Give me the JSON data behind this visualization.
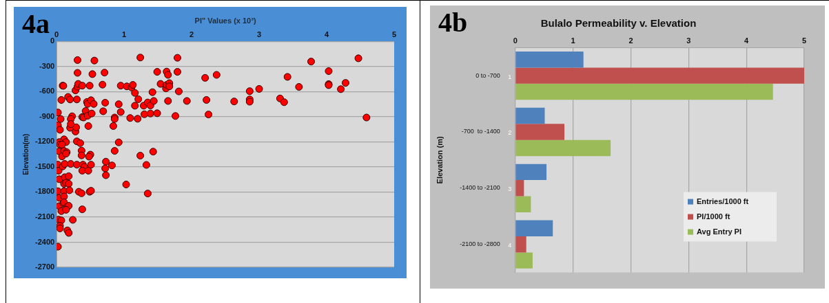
{
  "chart_data": [
    {
      "type": "scatter",
      "xlabel": "PI\" Values (x 10³)",
      "ylabel": "Elevation(m)",
      "annotations": [
        "4a"
      ],
      "xlim": [
        0,
        5
      ],
      "xticks": [
        0,
        1,
        2,
        3,
        4,
        5
      ],
      "ylim": [
        -2700,
        0
      ],
      "yticks": [
        -2700,
        -2400,
        -2100,
        -1800,
        -1500,
        -1200,
        -900,
        -600,
        -300,
        0
      ],
      "grid": "y",
      "marker": "circle",
      "series": [
        {
          "color": "#ff0000",
          "x": [
            0.31,
            0.56,
            0.31,
            0.53,
            0.71,
            0.09,
            0.1,
            0.28,
            0.31,
            0.32,
            0.38,
            0.49,
            0.68,
            0.07,
            0.17,
            0.2,
            0.3,
            0.45,
            0.46,
            0.51,
            0.55,
            0.72,
            0.69,
            0.02,
            0.06,
            0.23,
            0.21,
            0.43,
            0.38,
            0.4,
            0.46,
            0.52,
            0.47,
            0.2,
            0.28,
            0.29,
            0.02,
            0.05,
            0.21,
            0.86,
            0.86,
            0.84,
            0.92,
            0.95,
            0.95,
            1.04,
            1.11,
            1.13,
            1.16,
            1.21,
            1.16,
            1.09,
            1.2,
            1.24,
            1.29,
            1.35,
            1.39,
            1.44,
            1.3,
            1.39,
            1.49,
            1.42,
            1.49,
            1.54,
            1.63,
            1.65,
            1.62,
            1.63,
            1.67,
            1.67,
            1.65,
            1.79,
            1.79,
            1.81,
            1.76,
            1.93,
            2.2,
            2.22,
            2.25,
            2.37,
            2.63,
            2.86,
            2.86,
            2.86,
            3.0,
            3.31,
            3.37,
            3.42,
            3.59,
            3.77,
            4.03,
            4.03,
            4.03,
            4.21,
            4.28,
            4.47,
            4.59,
            0.11,
            0.04,
            0.05,
            0.14,
            0.08,
            0.3,
            0.35,
            0.92,
            0.04,
            0.11,
            0.15,
            0.08,
            0.14,
            0.37,
            0.37,
            0.5,
            0.48,
            0.86,
            1.24,
            1.43,
            0.02,
            0.03,
            0.09,
            0.12,
            0.21,
            0.3,
            0.39,
            0.41,
            0.38,
            0.47,
            0.51,
            0.73,
            0.72,
            0.73,
            0.82,
            1.33,
            1.03,
            1.35,
            0.04,
            0.12,
            0.18,
            0.11,
            0.14,
            0.18,
            0.02,
            0.11,
            0.19,
            0.04,
            0.11,
            0.33,
            0.37,
            0.49,
            0.51,
            0.04,
            0.1,
            0.11,
            0.16,
            0.18,
            0.07,
            0.14,
            0.38,
            0.03,
            0.07,
            0.24,
            0.05,
            0.05,
            0.16,
            0.18,
            0.02
          ],
          "values": [
            -222,
            -228,
            -375,
            -390,
            -372,
            -528,
            -530,
            -585,
            -540,
            -507,
            -528,
            -528,
            -516,
            -699,
            -663,
            -693,
            -693,
            -723,
            -747,
            -702,
            -747,
            -732,
            -834,
            -849,
            -927,
            -894,
            -927,
            -831,
            -903,
            -909,
            -888,
            -861,
            -1011,
            -1032,
            -1077,
            -1026,
            -1002,
            -1056,
            -987,
            -909,
            -927,
            -1011,
            -750,
            -843,
            -528,
            -537,
            -549,
            -519,
            -615,
            -690,
            -768,
            -915,
            -924,
            -192,
            -768,
            -729,
            -765,
            -711,
            -870,
            -861,
            -858,
            -606,
            -363,
            -507,
            -360,
            -399,
            -561,
            -519,
            -498,
            -537,
            -711,
            -195,
            -363,
            -597,
            -891,
            -711,
            -435,
            -699,
            -873,
            -399,
            -717,
            -594,
            -693,
            -720,
            -567,
            -681,
            -726,
            -423,
            -543,
            -240,
            -354,
            -510,
            -522,
            -570,
            -495,
            -201,
            -909,
            -1170,
            -1203,
            -1233,
            -1203,
            -1233,
            -1194,
            -1215,
            -1206,
            -1314,
            -1308,
            -1323,
            -1374,
            -1341,
            -1305,
            -1362,
            -1353,
            -1377,
            -1308,
            -1365,
            -1317,
            -1473,
            -1545,
            -1494,
            -1464,
            -1464,
            -1473,
            -1473,
            -1500,
            -1545,
            -1545,
            -1473,
            -1437,
            -1518,
            -1599,
            -1482,
            -1476,
            -1710,
            -1818,
            -1647,
            -1623,
            -1611,
            -1701,
            -1689,
            -1701,
            -1791,
            -1791,
            -1779,
            -1869,
            -1854,
            -1797,
            -1815,
            -1797,
            -1785,
            -1968,
            -1935,
            -1923,
            -1974,
            -1965,
            -2028,
            -2013,
            -2007,
            -2130,
            -2139,
            -2133,
            -2205,
            -2235,
            -2259,
            -2289,
            -2454
          ]
        }
      ]
    },
    {
      "type": "bar",
      "orientation": "horizontal",
      "title": "Bulalo Permeability v. Elevation",
      "ylabel": "Elevation (m)",
      "annotations": [
        "4b",
        "1",
        "2",
        "3",
        "4"
      ],
      "categories": [
        "0 to -700",
        "-700  to -1400",
        "-1400 to -2100",
        "-2100 to -2800"
      ],
      "xlim": [
        0,
        5
      ],
      "xticks": [
        0,
        1,
        2,
        3,
        4,
        5
      ],
      "grid": "x",
      "legend": "bottom right",
      "series": [
        {
          "name": "Entries/1000 ft",
          "color": "#4f81bd",
          "values": [
            1.18,
            0.51,
            0.54,
            0.65
          ]
        },
        {
          "name": "PI/1000 ft",
          "color": "#c0504d",
          "values": [
            5.0,
            0.85,
            0.15,
            0.19
          ]
        },
        {
          "name": "Avg Entry PI",
          "color": "#9bbb59",
          "values": [
            4.46,
            1.65,
            0.27,
            0.3
          ]
        }
      ]
    }
  ]
}
